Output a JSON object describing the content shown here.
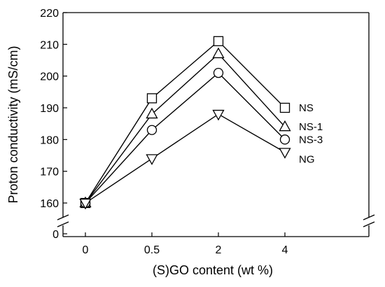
{
  "chart_data": {
    "type": "line",
    "xlabel": "(S)GO content (wt %)",
    "ylabel": "Proton conductivity  (mS/cm)",
    "categories": [
      "0",
      "0.5",
      "2",
      "4"
    ],
    "y_ticks": [
      "0",
      "160",
      "170",
      "180",
      "190",
      "200",
      "210",
      "220"
    ],
    "ylim": [
      160,
      220
    ],
    "y_axis_break": true,
    "grid": false,
    "legend": "inline-right",
    "series": [
      {
        "name": "NS",
        "marker": "square",
        "values": [
          160,
          193,
          211,
          190
        ]
      },
      {
        "name": "NS-1",
        "marker": "triangle-up",
        "values": [
          160,
          188,
          207,
          184
        ]
      },
      {
        "name": "NS-3",
        "marker": "circle",
        "values": [
          160,
          183,
          201,
          180
        ]
      },
      {
        "name": "NG",
        "marker": "triangle-down",
        "values": [
          160,
          174,
          188,
          176
        ]
      }
    ],
    "colors": {
      "line": "#000000",
      "marker_fill": "#ffffff",
      "background": "#ffffff"
    }
  }
}
